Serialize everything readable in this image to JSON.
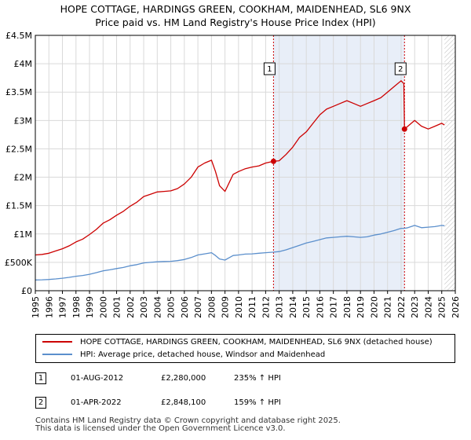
{
  "title_line1": "HOPE COTTAGE, HARDINGS GREEN, COOKHAM, MAIDENHEAD, SL6 9NX",
  "title_line2": "Price paid vs. HM Land Registry's House Price Index (HPI)",
  "chart_data": {
    "type": "line",
    "title": "HOPE COTTAGE, HARDINGS GREEN, COOKHAM, MAIDENHEAD, SL6 9NX — Price paid vs. HM Land Registry's House Price Index (HPI)",
    "xlabel": "",
    "ylabel": "",
    "xlim": [
      1995,
      2026
    ],
    "ylim": [
      0,
      4500000
    ],
    "x_ticks": [
      1995,
      1996,
      1997,
      1998,
      1999,
      2000,
      2001,
      2002,
      2003,
      2004,
      2005,
      2006,
      2007,
      2008,
      2009,
      2010,
      2011,
      2012,
      2013,
      2014,
      2015,
      2016,
      2017,
      2018,
      2019,
      2020,
      2021,
      2022,
      2023,
      2024,
      2025,
      2026
    ],
    "x_tick_labels": [
      "1995",
      "1996",
      "1997",
      "1998",
      "1999",
      "2000",
      "2001",
      "2002",
      "2003",
      "2004",
      "2005",
      "2006",
      "2007",
      "2008",
      "2009",
      "2010",
      "2011",
      "2012",
      "2013",
      "2014",
      "2015",
      "2016",
      "2017",
      "2018",
      "2019",
      "2020",
      "2021",
      "2022",
      "2023",
      "2024",
      "2025",
      "2026"
    ],
    "y_ticks": [
      0,
      500000,
      1000000,
      1500000,
      2000000,
      2500000,
      3000000,
      3500000,
      4000000,
      4500000
    ],
    "y_tick_labels": [
      "£0",
      "£500K",
      "£1M",
      "£1.5M",
      "£2M",
      "£2.5M",
      "£3M",
      "£3.5M",
      "£4M",
      "£4.5M"
    ],
    "grid": true,
    "shaded_range": [
      2012.58,
      2022.25
    ],
    "hatched_from": 2025.2,
    "series": [
      {
        "name": "HOPE COTTAGE, HARDINGS GREEN, COOKHAM, MAIDENHEAD, SL6 9NX (detached house)",
        "color": "#cc0000",
        "x": [
          1995,
          1995.5,
          1996,
          1996.5,
          1997,
          1997.5,
          1998,
          1998.5,
          1999,
          1999.5,
          2000,
          2000.5,
          2001,
          2001.5,
          2002,
          2002.5,
          2003,
          2003.5,
          2004,
          2004.5,
          2005,
          2005.5,
          2006,
          2006.5,
          2007,
          2007.5,
          2008,
          2008.3,
          2008.6,
          2009,
          2009.3,
          2009.6,
          2010,
          2010.5,
          2011,
          2011.5,
          2012,
          2012.58,
          2013,
          2013.5,
          2014,
          2014.5,
          2015,
          2015.5,
          2016,
          2016.5,
          2017,
          2017.5,
          2018,
          2018.5,
          2019,
          2019.5,
          2020,
          2020.5,
          2021,
          2021.5,
          2022.0,
          2022.2,
          2022.25,
          2022.5,
          2023,
          2023.5,
          2024,
          2024.5,
          2025,
          2025.2
        ],
        "y": [
          630000,
          640000,
          660000,
          700000,
          740000,
          790000,
          860000,
          910000,
          990000,
          1080000,
          1190000,
          1250000,
          1330000,
          1400000,
          1490000,
          1560000,
          1660000,
          1700000,
          1740000,
          1750000,
          1760000,
          1800000,
          1880000,
          2000000,
          2180000,
          2250000,
          2300000,
          2100000,
          1850000,
          1750000,
          1900000,
          2050000,
          2100000,
          2150000,
          2180000,
          2200000,
          2250000,
          2280000,
          2290000,
          2400000,
          2530000,
          2700000,
          2800000,
          2950000,
          3100000,
          3200000,
          3250000,
          3300000,
          3350000,
          3300000,
          3250000,
          3300000,
          3350000,
          3400000,
          3500000,
          3600000,
          3700000,
          3650000,
          2848100,
          2900000,
          3000000,
          2900000,
          2850000,
          2900000,
          2950000,
          2920000
        ]
      },
      {
        "name": "HPI: Average price, detached house, Windsor and Maidenhead",
        "color": "#5b8fcc",
        "x": [
          1995,
          1995.5,
          1996,
          1996.5,
          1997,
          1997.5,
          1998,
          1998.5,
          1999,
          1999.5,
          2000,
          2000.5,
          2001,
          2001.5,
          2002,
          2002.5,
          2003,
          2003.5,
          2004,
          2004.5,
          2005,
          2005.5,
          2006,
          2006.5,
          2007,
          2007.5,
          2008,
          2008.3,
          2008.6,
          2009,
          2009.3,
          2009.6,
          2010,
          2010.5,
          2011,
          2011.5,
          2012,
          2012.58,
          2013,
          2013.5,
          2014,
          2014.5,
          2015,
          2015.5,
          2016,
          2016.5,
          2017,
          2017.5,
          2018,
          2018.5,
          2019,
          2019.5,
          2020,
          2020.5,
          2021,
          2021.5,
          2022.0,
          2022.25,
          2022.5,
          2023,
          2023.5,
          2024,
          2024.5,
          2025,
          2025.2
        ],
        "y": [
          190000,
          193000,
          198000,
          208000,
          220000,
          235000,
          255000,
          268000,
          290000,
          318000,
          350000,
          368000,
          390000,
          410000,
          440000,
          460000,
          490000,
          500000,
          510000,
          515000,
          518000,
          530000,
          550000,
          585000,
          630000,
          650000,
          670000,
          620000,
          560000,
          540000,
          580000,
          620000,
          630000,
          645000,
          650000,
          660000,
          670000,
          680000,
          690000,
          720000,
          760000,
          800000,
          840000,
          870000,
          900000,
          930000,
          940000,
          950000,
          960000,
          950000,
          940000,
          950000,
          980000,
          1000000,
          1030000,
          1060000,
          1100000,
          1100000,
          1110000,
          1150000,
          1110000,
          1120000,
          1130000,
          1150000,
          1145000
        ]
      }
    ],
    "annotations": [
      {
        "label": "1",
        "x": 2012.58,
        "y": 2280000,
        "date": "01-AUG-2012",
        "price": "£2,280,000",
        "hpi": "235% ↑ HPI"
      },
      {
        "label": "2",
        "x": 2022.25,
        "y": 2848100,
        "date": "01-APR-2022",
        "price": "£2,848,100",
        "hpi": "159% ↑ HPI"
      }
    ]
  },
  "legend": {
    "property_label": "HOPE COTTAGE, HARDINGS GREEN, COOKHAM, MAIDENHEAD, SL6 9NX (detached house)",
    "hpi_label": "HPI: Average price, detached house, Windsor and Maidenhead",
    "property_color": "#cc0000",
    "hpi_color": "#5b8fcc"
  },
  "sales": [
    {
      "num": "1",
      "date": "01-AUG-2012",
      "price": "£2,280,000",
      "hpi": "235% ↑ HPI"
    },
    {
      "num": "2",
      "date": "01-APR-2022",
      "price": "£2,848,100",
      "hpi": "159% ↑ HPI"
    }
  ],
  "footer_line1": "Contains HM Land Registry data © Crown copyright and database right 2025.",
  "footer_line2": "This data is licensed under the Open Government Licence v3.0."
}
